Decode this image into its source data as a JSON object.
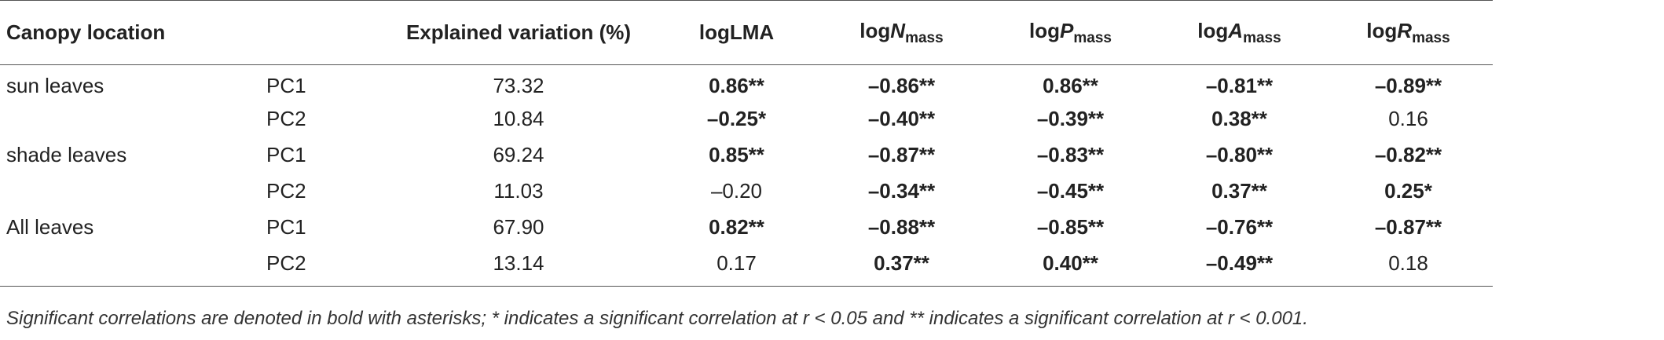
{
  "headers": {
    "canopy_location": "Canopy location",
    "explained_variation": "Explained variation (%)",
    "lma": "logLMA",
    "n_prefix": "log",
    "n_letter": "N",
    "n_sub": "mass",
    "p_prefix": "log",
    "p_letter": "P",
    "p_sub": "mass",
    "a_prefix": "log",
    "a_letter": "A",
    "a_sub": "mass",
    "r_prefix": "log",
    "r_letter": "R",
    "r_sub": "mass"
  },
  "rows": [
    {
      "location": "sun leaves",
      "pc": "PC1",
      "ev": "73.32",
      "lma": "0.86**",
      "n": "–0.86**",
      "p": "0.86**",
      "a": "–0.81**",
      "r": "–0.89**"
    },
    {
      "location": "",
      "pc": "PC2",
      "ev": "10.84",
      "lma": "–0.25*",
      "n": "–0.40**",
      "p": "–0.39**",
      "a": "0.38**",
      "r": "0.16"
    },
    {
      "location": "shade leaves",
      "pc": "PC1",
      "ev": "69.24",
      "lma": "0.85**",
      "n": "–0.87**",
      "p": "–0.83**",
      "a": "–0.80**",
      "r": "–0.82**"
    },
    {
      "location": "",
      "pc": "PC2",
      "ev": "11.03",
      "lma": "–0.20",
      "n": "–0.34**",
      "p": "–0.45**",
      "a": "0.37**",
      "r": "0.25*"
    },
    {
      "location": "All leaves",
      "pc": "PC1",
      "ev": "67.90",
      "lma": "0.82**",
      "n": "–0.88**",
      "p": "–0.85**",
      "a": "–0.76**",
      "r": "–0.87**"
    },
    {
      "location": "",
      "pc": "PC2",
      "ev": "13.14",
      "lma": "0.17",
      "n": "0.37**",
      "p": "0.40**",
      "a": "–0.49**",
      "r": "0.18"
    }
  ],
  "footnote": "Significant correlations are denoted in bold with asterisks; * indicates a significant correlation at r < 0.05 and ** indicates a significant correlation at r < 0.001."
}
